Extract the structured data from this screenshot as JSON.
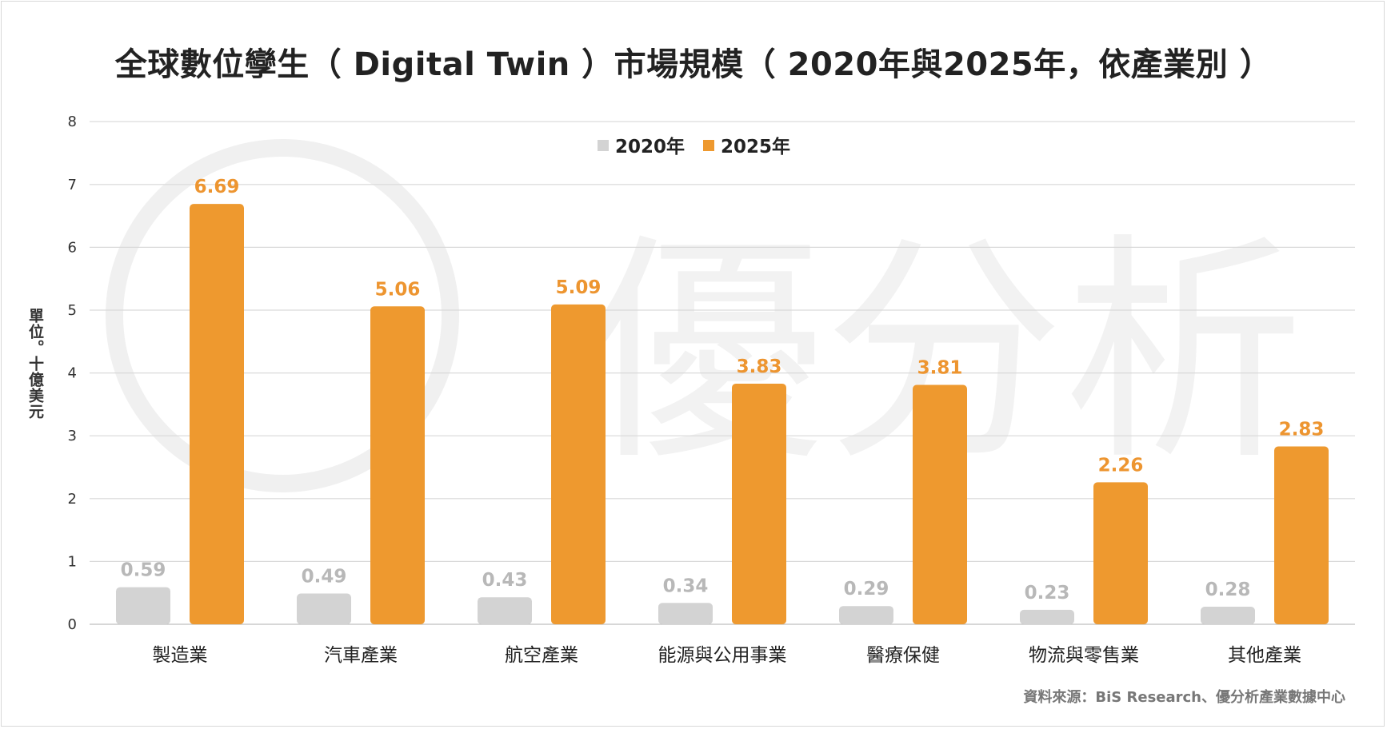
{
  "chart_data": {
    "type": "bar",
    "title": "全球數位孿生（ Digital Twin ）市場規模（ 2020年與2025年，依產業別 ）",
    "ylabel": "單位。十億美元",
    "xlabel": "",
    "ylim": [
      0,
      8
    ],
    "yticks": [
      0,
      1,
      2,
      3,
      4,
      5,
      6,
      7,
      8
    ],
    "grid": true,
    "legend_position": "top-center",
    "categories": [
      "製造業",
      "汽車產業",
      "航空產業",
      "能源與公用事業",
      "醫療保健",
      "物流與零售業",
      "其他產業"
    ],
    "series": [
      {
        "name": "2020年",
        "color": "#d3d3d3",
        "values": [
          0.59,
          0.49,
          0.43,
          0.34,
          0.29,
          0.23,
          0.28
        ]
      },
      {
        "name": "2025年",
        "color": "#ee992f",
        "values": [
          6.69,
          5.06,
          5.09,
          3.83,
          3.81,
          2.26,
          2.83
        ]
      }
    ],
    "source": "資料來源：BiS Research、優分析產業數據中心",
    "watermark": "優分析"
  }
}
